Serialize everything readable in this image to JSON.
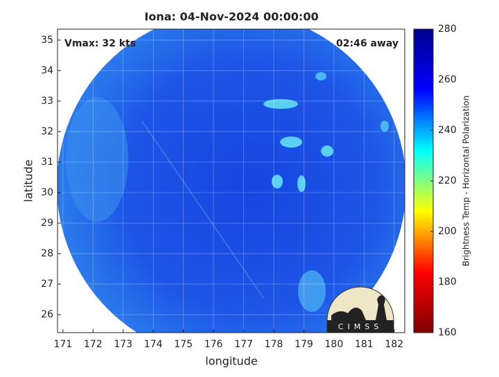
{
  "chart_data": {
    "type": "image",
    "title": "Iona: 04-Nov-2024 00:00:00",
    "annotations": [
      "Vmax: 32 kts",
      "02:46 away"
    ],
    "xlabel": "longitude",
    "ylabel": "latitude",
    "xlim": [
      170.82,
      182.35
    ],
    "xticks": [
      171,
      172,
      173,
      174,
      175,
      176,
      177,
      178,
      179,
      180,
      181,
      182
    ],
    "ylim": [
      25.41,
      35.36
    ],
    "yticks": [
      26,
      27,
      28,
      29,
      30,
      31,
      32,
      33,
      34,
      35
    ],
    "grid": true,
    "colorbar": {
      "label": "Brightness Temp - Horizontal Polarization",
      "clim": [
        160,
        280
      ],
      "ticks": [
        160,
        180,
        200,
        220,
        240,
        260,
        280
      ],
      "colormap": [
        "#800000",
        "#ff0000",
        "#ffff00",
        "#00ffff",
        "#0000ff",
        "#00008f"
      ]
    },
    "logo": "CIMSS"
  }
}
